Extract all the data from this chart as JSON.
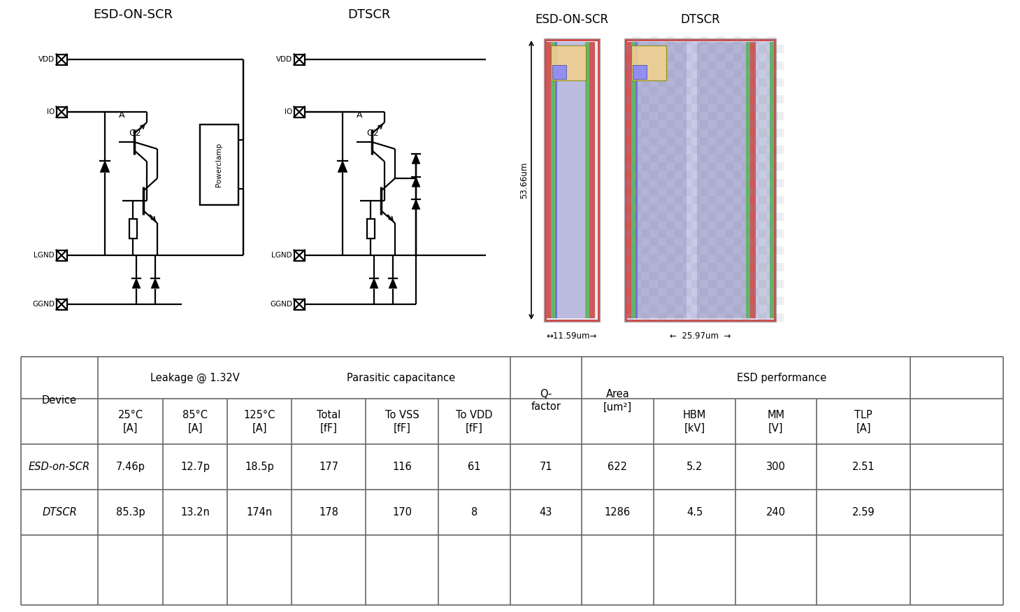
{
  "title_left": "ESD-ON-SCR",
  "title_center": "DTSCR",
  "title_right_1": "ESD-ON-SCR",
  "title_right_2": "DTSCR",
  "dim_height": "53.66um",
  "dim_width_left": "↔11.59um→",
  "dim_width_right": "←  25.97um  →",
  "table_data": [
    [
      "ESD-on-SCR",
      "7.46p",
      "12.7p",
      "18.5p",
      "177",
      "116",
      "61",
      "71",
      "622",
      "5.2",
      "300",
      "2.51"
    ],
    [
      "DTSCR",
      "85.3p",
      "13.2n",
      "174n",
      "178",
      "170",
      "8",
      "43",
      "1286",
      "4.5",
      "240",
      "2.59"
    ]
  ],
  "bg_color": "#ffffff",
  "lc": "#666666",
  "tc": "#000000"
}
